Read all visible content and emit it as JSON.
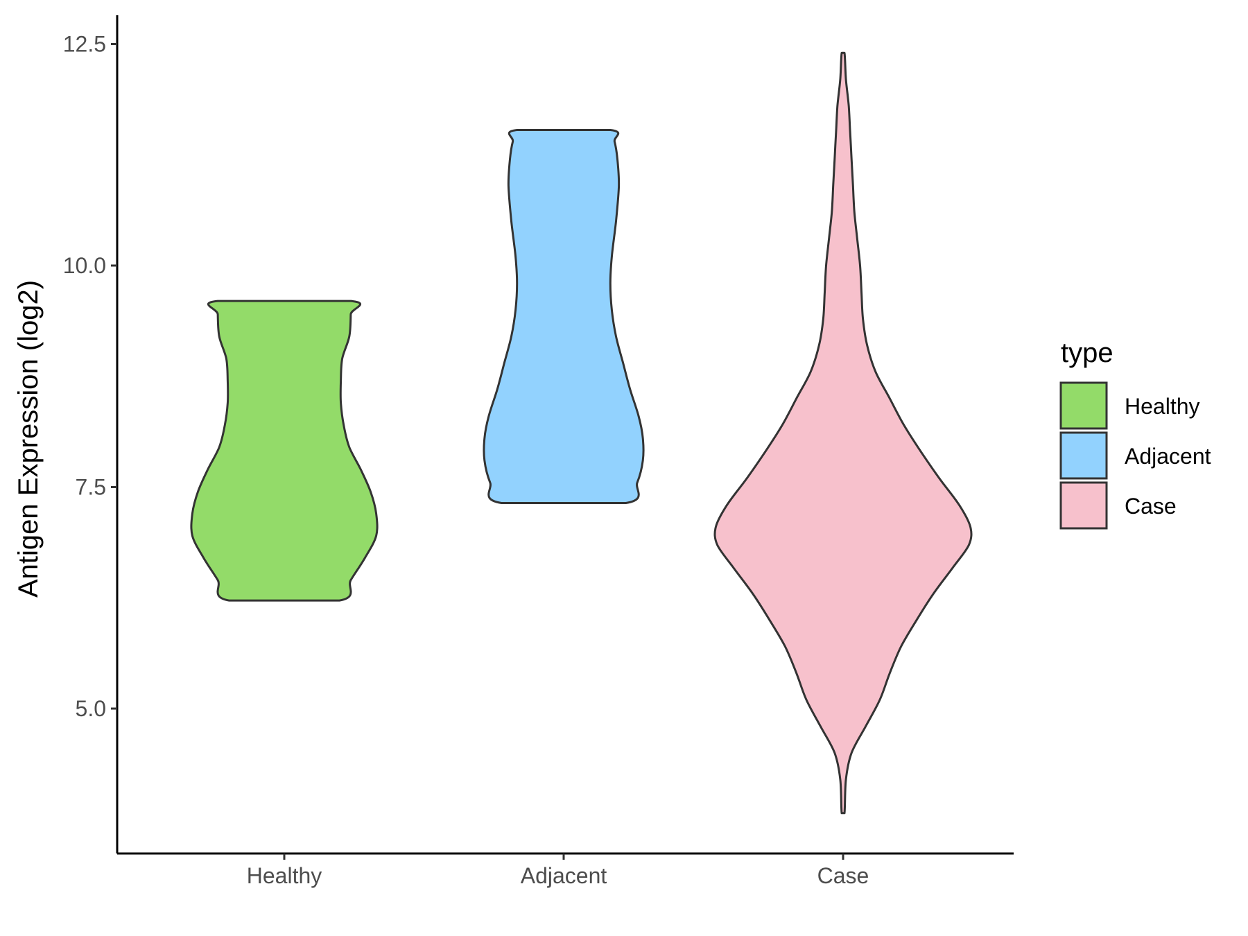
{
  "chart_data": {
    "type": "violin",
    "title": "",
    "xlabel": "",
    "ylabel": "Antigen Expression (log2)",
    "categories": [
      "Healthy",
      "Adjacent",
      "Case"
    ],
    "ylim": [
      3.4,
      12.8
    ],
    "yticks": [
      5.0,
      7.5,
      10.0,
      12.5
    ],
    "ytick_labels": [
      "5.0",
      "7.5",
      "10.0",
      "12.5"
    ],
    "grid": false,
    "legend": {
      "title": "type",
      "position": "right",
      "entries": [
        {
          "label": "Healthy",
          "color": "#93DB69"
        },
        {
          "label": "Adjacent",
          "color": "#92D2FE"
        },
        {
          "label": "Case",
          "color": "#F7C1CC"
        }
      ]
    },
    "series": [
      {
        "category": "Healthy",
        "color": "#93DB69",
        "min": 6.22,
        "max": 9.6,
        "density_profile": [
          [
            6.22,
            0.39
          ],
          [
            6.45,
            0.47
          ],
          [
            6.7,
            0.57
          ],
          [
            6.95,
            0.65
          ],
          [
            7.2,
            0.65
          ],
          [
            7.45,
            0.61
          ],
          [
            7.7,
            0.54
          ],
          [
            7.95,
            0.46
          ],
          [
            8.2,
            0.42
          ],
          [
            8.45,
            0.4
          ],
          [
            8.7,
            0.4
          ],
          [
            8.95,
            0.41
          ],
          [
            9.2,
            0.46
          ],
          [
            9.45,
            0.47
          ],
          [
            9.6,
            0.47
          ]
        ]
      },
      {
        "category": "Adjacent",
        "color": "#92D2FE",
        "min": 7.32,
        "max": 11.53,
        "density_profile": [
          [
            7.32,
            0.44
          ],
          [
            7.55,
            0.52
          ],
          [
            7.8,
            0.56
          ],
          [
            8.05,
            0.56
          ],
          [
            8.3,
            0.53
          ],
          [
            8.6,
            0.47
          ],
          [
            8.9,
            0.42
          ],
          [
            9.2,
            0.37
          ],
          [
            9.5,
            0.34
          ],
          [
            9.8,
            0.33
          ],
          [
            10.1,
            0.34
          ],
          [
            10.5,
            0.37
          ],
          [
            10.9,
            0.39
          ],
          [
            11.2,
            0.38
          ],
          [
            11.4,
            0.36
          ],
          [
            11.53,
            0.33
          ]
        ]
      },
      {
        "category": "Case",
        "color": "#F7C1CC",
        "min": 3.82,
        "max": 12.4,
        "density_profile": [
          [
            3.82,
            0.01
          ],
          [
            4.2,
            0.02
          ],
          [
            4.5,
            0.06
          ],
          [
            4.8,
            0.16
          ],
          [
            5.1,
            0.26
          ],
          [
            5.4,
            0.33
          ],
          [
            5.7,
            0.41
          ],
          [
            6.0,
            0.52
          ],
          [
            6.3,
            0.64
          ],
          [
            6.6,
            0.78
          ],
          [
            6.85,
            0.89
          ],
          [
            7.05,
            0.9
          ],
          [
            7.3,
            0.82
          ],
          [
            7.6,
            0.68
          ],
          [
            7.9,
            0.55
          ],
          [
            8.2,
            0.43
          ],
          [
            8.5,
            0.33
          ],
          [
            8.8,
            0.23
          ],
          [
            9.1,
            0.17
          ],
          [
            9.4,
            0.14
          ],
          [
            9.7,
            0.13
          ],
          [
            10.0,
            0.12
          ],
          [
            10.3,
            0.1
          ],
          [
            10.6,
            0.08
          ],
          [
            10.9,
            0.07
          ],
          [
            11.2,
            0.06
          ],
          [
            11.5,
            0.05
          ],
          [
            11.8,
            0.04
          ],
          [
            12.1,
            0.02
          ],
          [
            12.4,
            0.01
          ]
        ]
      }
    ]
  }
}
